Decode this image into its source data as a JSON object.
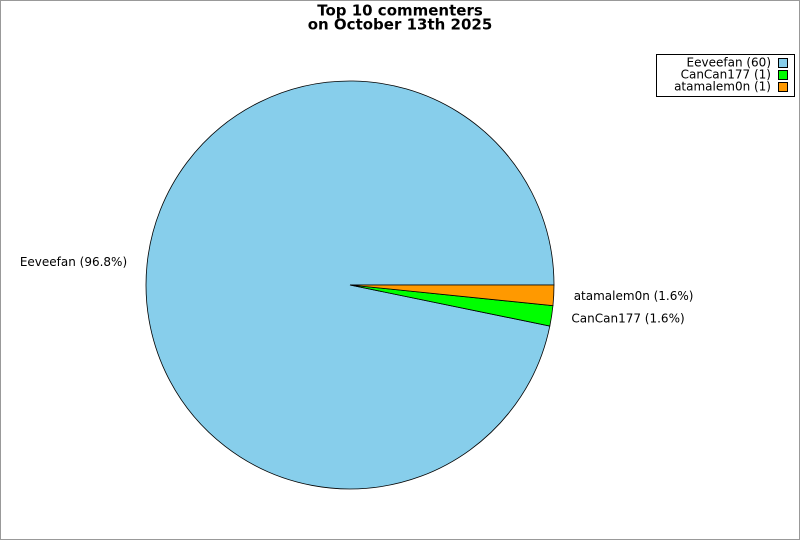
{
  "chart_data": {
    "type": "pie",
    "title": "Top 10 commenters",
    "subtitle": "on October 13th 2025",
    "categories": [
      "Eeveefan",
      "CanCan177",
      "atamalem0n"
    ],
    "values": [
      60,
      1,
      1
    ],
    "value_labels": [
      "Eeveefan (96.8%)",
      "CanCan177 (1.6%)",
      "atamalem0n (1.6%)"
    ],
    "legend_labels": [
      "Eeveefan (60)",
      "CanCan177 (1)",
      "atamalem0n (1)"
    ],
    "colors": [
      "#87ceeb",
      "#00ff00",
      "#ff9900"
    ]
  }
}
